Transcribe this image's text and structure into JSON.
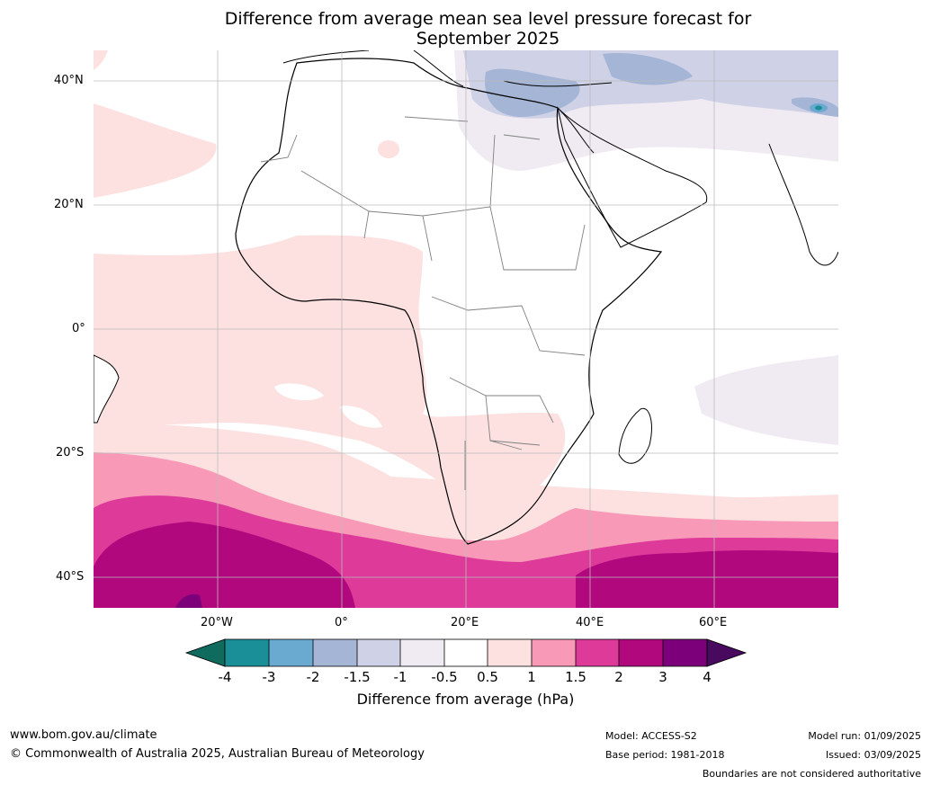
{
  "title_line1": "Difference from average mean sea level pressure forecast for",
  "title_line2": "September 2025",
  "lat_labels": [
    "40°N",
    "20°N",
    "0°",
    "20°S",
    "40°S"
  ],
  "lon_labels": [
    "20°W",
    "0°",
    "20°E",
    "40°E",
    "60°E"
  ],
  "colorbar": {
    "ticks": [
      "-4",
      "-3",
      "-2",
      "-1.5",
      "-1",
      "-0.5",
      "0.5",
      "1",
      "1.5",
      "2",
      "3",
      "4"
    ],
    "colors": [
      "#0e6b5d",
      "#1b8f97",
      "#6aaad0",
      "#a5b5d6",
      "#cfd1e6",
      "#f0ebf3",
      "#ffffff",
      "#fde0e0",
      "#f89ab7",
      "#dd3a9a",
      "#b1087e",
      "#7c0079",
      "#470a5e"
    ],
    "label": "Difference from average (hPa)"
  },
  "footer": {
    "url": "www.bom.gov.au/climate",
    "copyright": "© Commonwealth of Australia 2025, Australian Bureau of Meteorology",
    "model": "Model: ACCESS-S2",
    "base_period": "Base period: 1981-2018",
    "model_run": "Model run: 01/09/2025",
    "issued": "Issued: 03/09/2025",
    "disclaimer": "Boundaries are not considered authoritative"
  }
}
